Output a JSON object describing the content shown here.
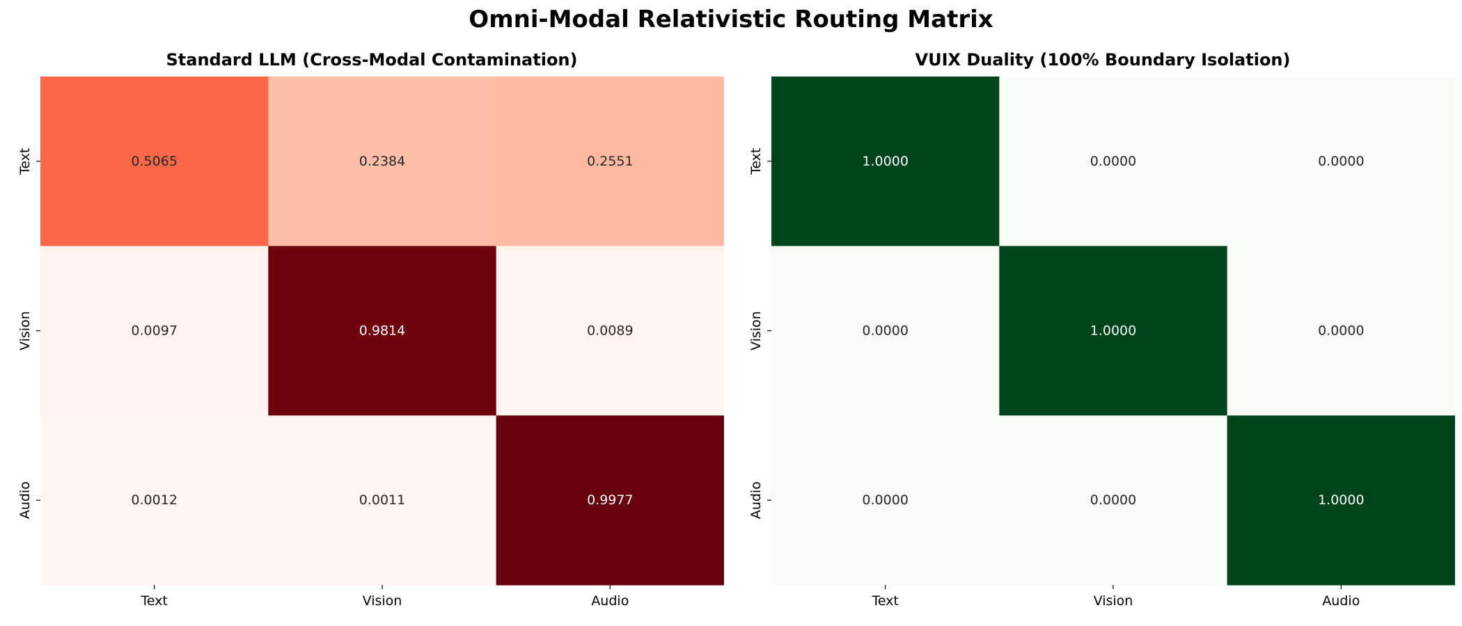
{
  "suptitle": "Omni-Modal Relativistic Routing Matrix",
  "chart_data": [
    {
      "type": "heatmap",
      "title": "Standard LLM (Cross-Modal Contamination)",
      "x_categories": [
        "Text",
        "Vision",
        "Audio"
      ],
      "y_categories": [
        "Text",
        "Vision",
        "Audio"
      ],
      "values": [
        [
          0.5065,
          0.2384,
          0.2551
        ],
        [
          0.0097,
          0.9814,
          0.0089
        ],
        [
          0.0012,
          0.0011,
          0.9977
        ]
      ],
      "value_format": "4 decimals",
      "colormap": "Reds",
      "vmin": 0,
      "vmax": 1,
      "colorbar": false
    },
    {
      "type": "heatmap",
      "title": "VUIX Duality (100% Boundary Isolation)",
      "x_categories": [
        "Text",
        "Vision",
        "Audio"
      ],
      "y_categories": [
        "Text",
        "Vision",
        "Audio"
      ],
      "values": [
        [
          1.0,
          0.0,
          0.0
        ],
        [
          0.0,
          1.0,
          0.0
        ],
        [
          0.0,
          0.0,
          1.0
        ]
      ],
      "value_format": "4 decimals",
      "colormap": "Greens",
      "vmin": 0,
      "vmax": 1,
      "colorbar": false
    }
  ]
}
